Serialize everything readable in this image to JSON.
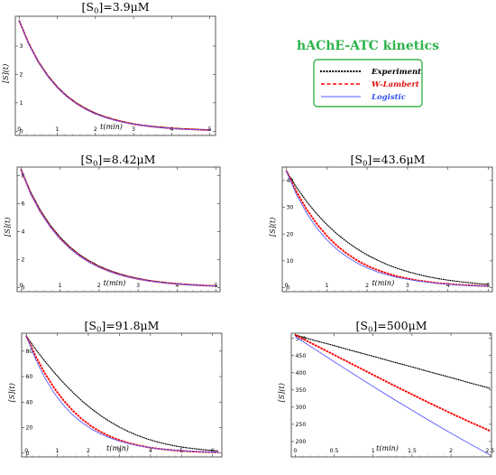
{
  "legend": {
    "title": "hAChE-ATC kinetics",
    "entries": [
      {
        "name": "Experiment",
        "style": "dotted",
        "color": "#000000"
      },
      {
        "name": "W-Lambert",
        "style": "dashed",
        "color": "#ff0000"
      },
      {
        "name": "Logistic",
        "style": "solid",
        "color": "#5555ff"
      }
    ],
    "border_color": "#3cb34a",
    "title_color": "#2db34a"
  },
  "chart_data": [
    {
      "type": "line",
      "title": "[S0]=3.9μM",
      "title_main": "[S",
      "title_sub": "0",
      "title_rest": "]=3.9μM",
      "xlabel": "t(min)",
      "ylabel": "[S](t)",
      "xlim": [
        -0.1,
        5.15
      ],
      "ylim": [
        -0.15,
        4.05
      ],
      "xticks": [
        0,
        1,
        2,
        3,
        4,
        5
      ],
      "xtick_labels": [
        "0",
        "1",
        "2",
        "3",
        "4",
        "5"
      ],
      "yticks": [
        0,
        1,
        2,
        3
      ],
      "ytick_labels": [
        "0",
        "1",
        "2",
        "3"
      ],
      "x": [
        0,
        0.25,
        0.5,
        0.75,
        1,
        1.25,
        1.5,
        1.75,
        2,
        2.25,
        2.5,
        2.75,
        3,
        3.25,
        3.5,
        3.75,
        4,
        4.25,
        4.5,
        4.75,
        5
      ],
      "series": [
        {
          "name": "Experiment",
          "values": [
            3.9,
            3.1,
            2.47,
            1.97,
            1.57,
            1.25,
            1.0,
            0.8,
            0.64,
            0.51,
            0.41,
            0.33,
            0.26,
            0.21,
            0.17,
            0.14,
            0.11,
            0.09,
            0.07,
            0.06,
            0.05
          ]
        },
        {
          "name": "W-Lambert",
          "values": [
            3.9,
            3.09,
            2.45,
            1.95,
            1.55,
            1.23,
            0.98,
            0.78,
            0.62,
            0.5,
            0.4,
            0.32,
            0.25,
            0.2,
            0.16,
            0.13,
            0.1,
            0.08,
            0.07,
            0.05,
            0.04
          ]
        },
        {
          "name": "Logistic",
          "values": [
            3.9,
            3.08,
            2.44,
            1.94,
            1.54,
            1.22,
            0.97,
            0.77,
            0.61,
            0.49,
            0.39,
            0.31,
            0.25,
            0.2,
            0.16,
            0.12,
            0.1,
            0.08,
            0.06,
            0.05,
            0.04
          ]
        }
      ]
    },
    {
      "type": "line",
      "title": "[S0]=8.42μM",
      "title_main": "[S",
      "title_sub": "0",
      "title_rest": "]=8.42μM",
      "xlabel": "t(min)",
      "ylabel": "[S](t)",
      "xlim": [
        -0.1,
        5.1
      ],
      "ylim": [
        -0.3,
        8.6
      ],
      "xticks": [
        0,
        1,
        2,
        3,
        4,
        5
      ],
      "xtick_labels": [
        "0",
        "1",
        "2",
        "3",
        "4",
        "5"
      ],
      "yticks": [
        0,
        2,
        4,
        6,
        8
      ],
      "ytick_labels": [
        "0",
        "2",
        "4",
        "6",
        "8"
      ],
      "x": [
        0,
        0.25,
        0.5,
        0.75,
        1,
        1.25,
        1.5,
        1.75,
        2,
        2.25,
        2.5,
        2.75,
        3,
        3.25,
        3.5,
        3.75,
        4,
        4.25,
        4.5,
        4.75,
        5
      ],
      "series": [
        {
          "name": "Experiment",
          "values": [
            8.42,
            6.8,
            5.5,
            4.45,
            3.6,
            2.9,
            2.35,
            1.9,
            1.53,
            1.24,
            1.0,
            0.8,
            0.65,
            0.52,
            0.42,
            0.34,
            0.27,
            0.22,
            0.18,
            0.14,
            0.11
          ]
        },
        {
          "name": "W-Lambert",
          "values": [
            8.42,
            6.7,
            5.4,
            4.35,
            3.5,
            2.82,
            2.27,
            1.83,
            1.47,
            1.18,
            0.95,
            0.76,
            0.61,
            0.49,
            0.4,
            0.32,
            0.26,
            0.21,
            0.17,
            0.13,
            0.11
          ]
        },
        {
          "name": "Logistic",
          "values": [
            8.42,
            6.68,
            5.37,
            4.32,
            3.47,
            2.79,
            2.24,
            1.8,
            1.45,
            1.16,
            0.93,
            0.75,
            0.6,
            0.48,
            0.39,
            0.31,
            0.25,
            0.2,
            0.16,
            0.13,
            0.1
          ]
        }
      ]
    },
    {
      "type": "line",
      "title": "[S0]=43.6μM",
      "title_main": "[S",
      "title_sub": "0",
      "title_rest": "]=43.6μM",
      "xlabel": "t(min)",
      "ylabel": "[S](t)",
      "xlim": [
        -0.1,
        5.1
      ],
      "ylim": [
        -1.5,
        45
      ],
      "xticks": [
        0,
        1,
        2,
        3,
        4,
        5
      ],
      "xtick_labels": [
        "0",
        "1",
        "2",
        "3",
        "4",
        "5"
      ],
      "yticks": [
        0,
        10,
        20,
        30,
        40
      ],
      "ytick_labels": [
        "0",
        "10",
        "20",
        "30",
        "40"
      ],
      "x": [
        0,
        0.25,
        0.5,
        0.75,
        1,
        1.25,
        1.5,
        1.75,
        2,
        2.25,
        2.5,
        2.75,
        3,
        3.25,
        3.5,
        3.75,
        4,
        4.25,
        4.5,
        4.75,
        5
      ],
      "series": [
        {
          "name": "Experiment",
          "values": [
            43.6,
            37.5,
            32.2,
            27.6,
            23.6,
            20.1,
            17.1,
            14.5,
            12.2,
            10.3,
            8.6,
            7.2,
            6.0,
            5.0,
            4.1,
            3.4,
            2.8,
            2.3,
            1.9,
            1.5,
            1.2
          ]
        },
        {
          "name": "W-Lambert",
          "values": [
            43.6,
            35.8,
            29.3,
            23.9,
            19.4,
            15.7,
            12.7,
            10.2,
            8.2,
            6.6,
            5.3,
            4.2,
            3.4,
            2.7,
            2.2,
            1.7,
            1.4,
            1.1,
            0.9,
            0.7,
            0.6
          ]
        },
        {
          "name": "Logistic",
          "values": [
            43.6,
            34.8,
            27.9,
            22.3,
            17.9,
            14.3,
            11.5,
            9.2,
            7.4,
            5.9,
            4.8,
            3.8,
            3.1,
            2.5,
            2.0,
            1.6,
            1.3,
            1.0,
            0.8,
            0.7,
            0.5
          ]
        }
      ]
    },
    {
      "type": "line",
      "title": "[S0]=91.8μM",
      "title_main": "[S",
      "title_sub": "0",
      "title_rest": "]=91.8μM",
      "xlabel": "t(min)",
      "ylabel": "[S](t)",
      "xlim": [
        -0.15,
        6.3
      ],
      "ylim": [
        -3,
        94
      ],
      "xticks": [
        0,
        1,
        2,
        3,
        4,
        5,
        6
      ],
      "xtick_labels": [
        "0",
        "1",
        "2",
        "3",
        "4",
        "5",
        "6"
      ],
      "yticks": [
        0,
        20,
        40,
        60,
        80
      ],
      "ytick_labels": [
        "0",
        "20",
        "40",
        "60",
        "80"
      ],
      "x": [
        0,
        0.3,
        0.6,
        0.9,
        1.2,
        1.5,
        1.8,
        2.1,
        2.4,
        2.7,
        3.0,
        3.3,
        3.6,
        3.9,
        4.2,
        4.5,
        4.8,
        5.1,
        5.4,
        5.7,
        6.0,
        6.2
      ],
      "series": [
        {
          "name": "Experiment",
          "values": [
            91.8,
            81.5,
            72.0,
            63.2,
            55.0,
            47.6,
            40.8,
            34.8,
            29.4,
            24.6,
            20.4,
            16.8,
            13.7,
            11.1,
            8.9,
            7.1,
            5.6,
            4.4,
            3.5,
            2.7,
            2.1,
            1.8
          ]
        },
        {
          "name": "W-Lambert",
          "values": [
            91.8,
            76.0,
            62.5,
            51.0,
            41.3,
            33.2,
            26.5,
            21.0,
            16.6,
            13.0,
            10.2,
            7.9,
            6.1,
            4.7,
            3.6,
            2.8,
            2.1,
            1.6,
            1.2,
            0.9,
            0.7,
            0.6
          ]
        },
        {
          "name": "Logistic",
          "values": [
            91.8,
            73.5,
            58.8,
            47.0,
            37.5,
            29.9,
            23.8,
            18.9,
            15.0,
            11.9,
            9.4,
            7.4,
            5.9,
            4.6,
            3.6,
            2.9,
            2.2,
            1.8,
            1.4,
            1.1,
            0.8,
            0.7
          ]
        }
      ]
    },
    {
      "type": "line",
      "title": "[S0]=500μM",
      "title_main": "[S",
      "title_sub": "0",
      "title_rest": "]=500μM",
      "xlabel": "t(min)",
      "ylabel": "[S](t)",
      "xlim": [
        -0.05,
        2.52
      ],
      "ylim": [
        155,
        515
      ],
      "xticks": [
        0,
        0.5,
        1,
        1.5,
        2,
        2.5
      ],
      "xtick_labels": [
        "0",
        "0.5",
        "1",
        "1.5",
        "2",
        "2.5"
      ],
      "yticks": [
        200,
        250,
        300,
        350,
        400,
        450,
        500
      ],
      "ytick_labels": [
        "200",
        "250",
        "300",
        "350",
        "400",
        "450",
        "500"
      ],
      "x": [
        0,
        0.25,
        0.5,
        0.75,
        1,
        1.25,
        1.5,
        1.75,
        2,
        2.25,
        2.5
      ],
      "series": [
        {
          "name": "Experiment",
          "values": [
            510,
            494,
            479,
            463,
            448,
            432,
            417,
            401,
            386,
            370,
            355
          ]
        },
        {
          "name": "W-Lambert",
          "values": [
            510,
            481,
            452,
            423,
            394,
            365,
            337,
            309,
            282,
            256,
            231
          ]
        },
        {
          "name": "Logistic",
          "values": [
            505,
            469,
            432,
            396,
            360,
            325,
            291,
            257,
            224,
            192,
            161
          ]
        }
      ]
    }
  ]
}
